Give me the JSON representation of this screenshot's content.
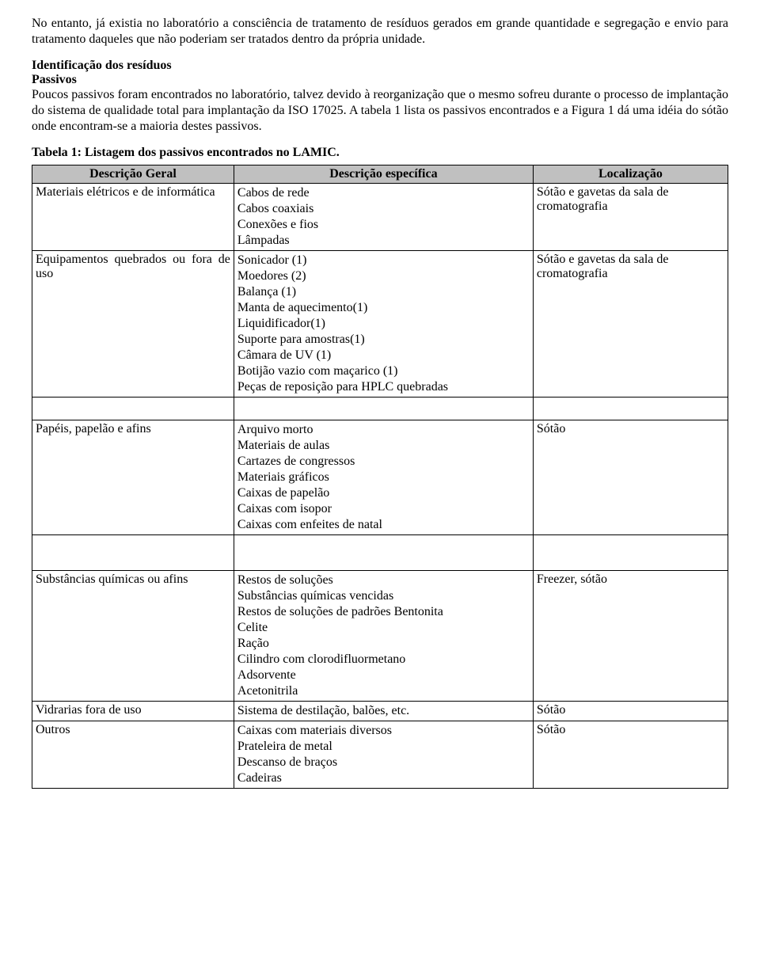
{
  "intro_para": "No entanto, já existia no laboratório a consciência de tratamento de resíduos gerados em grande quantidade e segregação e envio para tratamento daqueles que não poderiam ser tratados dentro da própria unidade.",
  "section_heading": "Identificação dos resíduos",
  "sub_heading": "Passivos",
  "body_para": "Poucos passivos foram encontrados no laboratório, talvez devido à reorganização que o mesmo sofreu durante o processo de implantação do sistema de qualidade total para implantação da ISO 17025. A tabela 1 lista os passivos encontrados e a Figura 1 dá uma idéia do sótão onde encontram-se a maioria destes passivos.",
  "table_caption": "Tabela 1: Listagem dos passivos encontrados no LAMIC.",
  "table": {
    "headers": [
      "Descrição Geral",
      "Descrição específica",
      "Localização"
    ],
    "rows": [
      {
        "geral": "Materiais elétricos e de informática",
        "especifica": [
          "Cabos de rede",
          "Cabos coaxiais",
          "Conexões e fios",
          "Lâmpadas"
        ],
        "local": "Sótão e gavetas da sala de cromatografia"
      },
      {
        "geral": "Equipamentos quebrados ou fora de uso",
        "especifica": [
          "Sonicador (1)",
          "Moedores (2)",
          "Balança  (1)",
          "Manta de aquecimento(1)",
          "Liquidificador(1)",
          "Suporte para amostras(1)",
          "Câmara de UV (1)",
          "Botijão vazio com maçarico (1)",
          "Peças de reposição para HPLC quebradas"
        ],
        "local": "Sótão e gavetas da sala de cromatografia"
      },
      {
        "geral": "Papéis, papelão e afins",
        "especifica": [
          "Arquivo morto",
          "Materiais de aulas",
          "Cartazes de congressos",
          "Materiais gráficos",
          "Caixas de papelão",
          "Caixas com isopor",
          "Caixas com enfeites de natal"
        ],
        "local": "Sótão"
      },
      {
        "geral": "Substâncias químicas ou afins",
        "especifica": [
          "Restos de soluções",
          "Substâncias químicas vencidas",
          "Restos de soluções de padrões Bentonita",
          "Celite",
          "Ração",
          "Cilindro com clorodifluormetano",
          "Adsorvente",
          "Acetonitrila"
        ],
        "local": "Freezer, sótão"
      },
      {
        "geral": "Vidrarias fora de uso",
        "especifica": [
          "Sistema de destilação, balões, etc."
        ],
        "local": "Sótão"
      },
      {
        "geral": "Outros",
        "especifica": [
          "Caixas com materiais diversos",
          "Prateleira de metal",
          "Descanso de braços",
          "Cadeiras"
        ],
        "local": "Sótão"
      }
    ],
    "spacer_after_row_index": [
      1,
      2
    ],
    "spacer_heights": [
      24,
      40
    ]
  }
}
